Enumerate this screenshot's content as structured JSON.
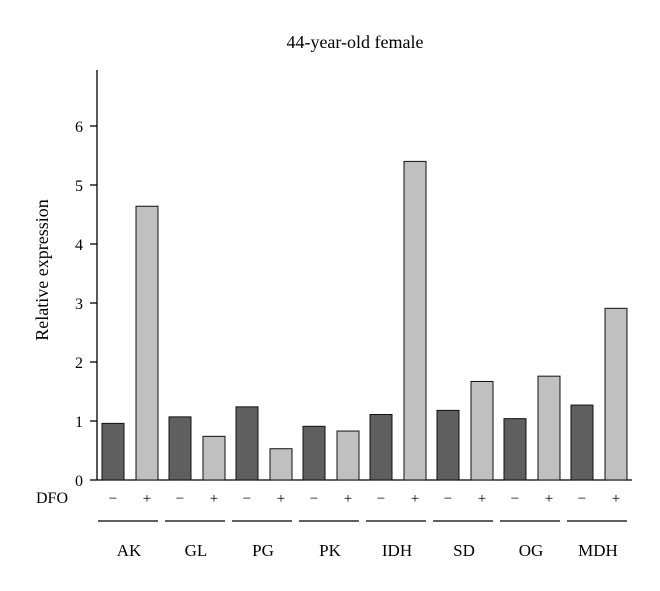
{
  "chart_data": {
    "type": "bar",
    "title": "44-year-old female",
    "xlabel": "",
    "ylabel": "Relative expression",
    "ylim": [
      0,
      6.8
    ],
    "yticks": [
      0,
      1,
      2,
      3,
      4,
      5,
      6
    ],
    "row_label": "DFO",
    "treatment_labels": [
      "−",
      "+"
    ],
    "categories": [
      "AK",
      "GL",
      "PG",
      "PK",
      "IDH",
      "SD",
      "OG",
      "MDH"
    ],
    "series": [
      {
        "treatment": "−",
        "color": "#5f5f5f",
        "values": [
          0.96,
          1.07,
          1.24,
          0.91,
          1.11,
          1.18,
          1.04,
          1.27
        ]
      },
      {
        "treatment": "+",
        "color": "#c0c0c0",
        "values": [
          4.64,
          0.74,
          0.53,
          0.83,
          5.4,
          1.67,
          1.76,
          2.91
        ]
      }
    ],
    "grid": false,
    "legend": "none"
  }
}
